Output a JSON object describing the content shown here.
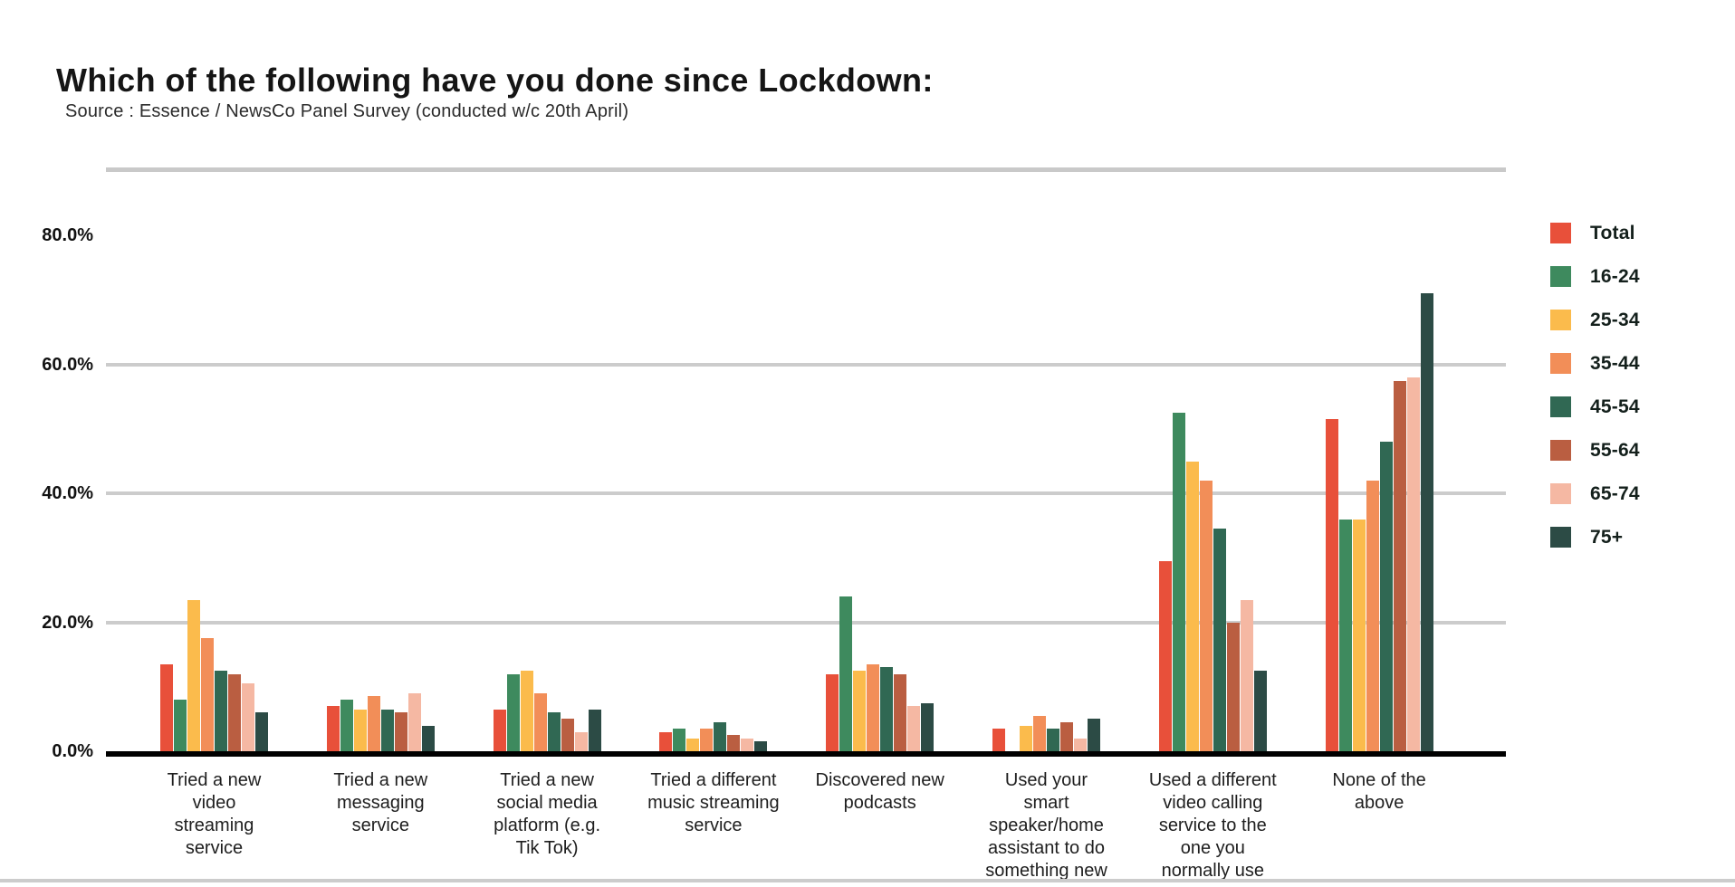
{
  "header": {
    "title": "Which of the following have you done since Lockdown:",
    "source": "Source : Essence / NewsCo Panel Survey (conducted w/c 20th April)"
  },
  "chart_data": {
    "type": "bar",
    "title": "Which of the following have you done since Lockdown:",
    "subtitle": "Source : Essence / NewsCo Panel Survey (conducted w/c 20th April)",
    "categories": [
      "Tried a new video streaming service",
      "Tried a new messaging service",
      "Tried a new social media platform (e.g. Tik Tok)",
      "Tried a different music streaming service",
      "Discovered new podcasts",
      "Used your smart speaker/home assistant to do something new",
      "Used a different video calling service to the one you normally use",
      "None of the above"
    ],
    "category_lines": [
      [
        "Tried a new",
        "video",
        "streaming",
        "service"
      ],
      [
        "Tried a new",
        "messaging",
        "service"
      ],
      [
        "Tried a new",
        "social media",
        "platform (e.g.",
        "Tik Tok)"
      ],
      [
        "Tried a different",
        "music streaming",
        "service"
      ],
      [
        "Discovered new",
        "podcasts"
      ],
      [
        "Used your",
        "smart",
        "speaker/home",
        "assistant to do",
        "something new"
      ],
      [
        "Used a different",
        "video calling",
        "service to the",
        "one you",
        "normally use"
      ],
      [
        "None of the",
        "above"
      ]
    ],
    "series": [
      {
        "name": "Total",
        "color": "#E8503A",
        "values": [
          13.5,
          7,
          6.5,
          3,
          12,
          3.5,
          29.5,
          51.5
        ]
      },
      {
        "name": "16-24",
        "color": "#3E8A5E",
        "values": [
          8,
          8,
          12,
          3.5,
          24,
          0,
          52.5,
          36
        ]
      },
      {
        "name": "25-34",
        "color": "#FBBB4C",
        "values": [
          23.5,
          6.5,
          12.5,
          2,
          12.5,
          4,
          45,
          36
        ]
      },
      {
        "name": "35-44",
        "color": "#F28E58",
        "values": [
          17.5,
          8.5,
          9,
          3.5,
          13.5,
          5.5,
          42,
          42
        ]
      },
      {
        "name": "45-54",
        "color": "#306853",
        "values": [
          12.5,
          6.5,
          6,
          4.5,
          13,
          3.5,
          34.5,
          48
        ]
      },
      {
        "name": "55-64",
        "color": "#BA5E41",
        "values": [
          12,
          6,
          5,
          2.5,
          12,
          4.5,
          20,
          57.5
        ]
      },
      {
        "name": "65-74",
        "color": "#F5B8A3",
        "values": [
          10.5,
          9,
          3,
          2,
          7,
          2,
          23.5,
          58
        ]
      },
      {
        "name": "75+",
        "color": "#2C4B45",
        "values": [
          6,
          4,
          6.5,
          1.5,
          7.5,
          5,
          12.5,
          71
        ]
      }
    ],
    "y_ticks": [
      {
        "label": "80.0%",
        "value": 80
      },
      {
        "label": "60.0%",
        "value": 60
      },
      {
        "label": "40.0%",
        "value": 40
      },
      {
        "label": "20.0%",
        "value": 20
      },
      {
        "label": "0.0%",
        "value": 0
      }
    ],
    "gridline_values": [
      20,
      40,
      60
    ],
    "ylim": [
      0,
      90
    ],
    "ylabel": "",
    "xlabel": "",
    "grid": "horizontal",
    "legend_position": "right"
  }
}
